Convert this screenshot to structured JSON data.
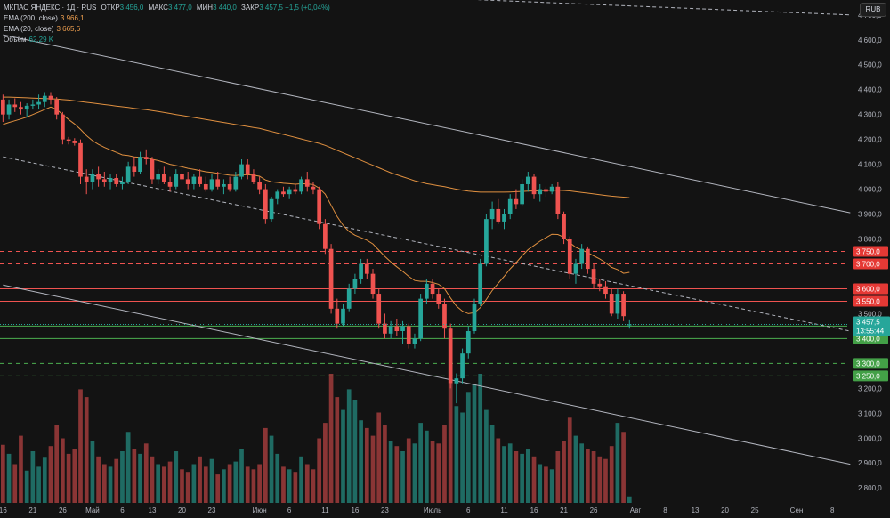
{
  "legend": {
    "symbol": "МКПАО ЯНДЕКС · 1Д · RUS",
    "open_label": "ОТКР",
    "open": "3 456,0",
    "high_label": "МАКС",
    "high": "3 477,0",
    "low_label": "МИН",
    "low": "3 440,0",
    "close_label": "ЗАКР",
    "close": "3 457,5",
    "change": "+1,5 (+0,04%)",
    "ema200_label": "EMA (200, close)",
    "ema200": "3 966,1",
    "ema20_label": "EMA (20, close)",
    "ema20": "3 665,6",
    "volume_label": "Объём",
    "volume": "62,29 K"
  },
  "currency": "RUB",
  "price_tag": {
    "value": "3 457,5",
    "countdown": "13:55:44",
    "color": "#26a69a"
  },
  "chart_data": {
    "type": "candlestick",
    "y_axis": {
      "min": 2740,
      "max": 4760,
      "ticks": [
        {
          "v": 4700,
          "label": "4 700,0"
        },
        {
          "v": 4600,
          "label": "4 600,0"
        },
        {
          "v": 4500,
          "label": "4 500,0"
        },
        {
          "v": 4400,
          "label": "4 400,0"
        },
        {
          "v": 4300,
          "label": "4 300,0"
        },
        {
          "v": 4200,
          "label": "4 200,0"
        },
        {
          "v": 4100,
          "label": "4 100,0"
        },
        {
          "v": 4000,
          "label": "4 000,0"
        },
        {
          "v": 3900,
          "label": "3 900,0"
        },
        {
          "v": 3800,
          "label": "3 800,0"
        },
        {
          "v": 3500,
          "label": "3 500,0"
        },
        {
          "v": 3200,
          "label": "3 200,0"
        },
        {
          "v": 3100,
          "label": "3 100,0"
        },
        {
          "v": 3000,
          "label": "3 000,0"
        },
        {
          "v": 2900,
          "label": "2 900,0"
        },
        {
          "v": 2800,
          "label": "2 800,0"
        }
      ]
    },
    "x_axis": {
      "ticks": [
        {
          "i": 0,
          "label": "16"
        },
        {
          "i": 5,
          "label": "21"
        },
        {
          "i": 10,
          "label": "26"
        },
        {
          "i": 15,
          "label": "Май"
        },
        {
          "i": 20,
          "label": "6"
        },
        {
          "i": 25,
          "label": "13"
        },
        {
          "i": 30,
          "label": "20"
        },
        {
          "i": 35,
          "label": "23"
        },
        {
          "i": 43,
          "label": "Июн"
        },
        {
          "i": 48,
          "label": "6"
        },
        {
          "i": 54,
          "label": "11"
        },
        {
          "i": 59,
          "label": "16"
        },
        {
          "i": 64,
          "label": "23"
        },
        {
          "i": 72,
          "label": "Июль"
        },
        {
          "i": 78,
          "label": "6"
        },
        {
          "i": 84,
          "label": "11"
        },
        {
          "i": 89,
          "label": "16"
        },
        {
          "i": 94,
          "label": "21"
        },
        {
          "i": 99,
          "label": "26"
        },
        {
          "i": 106,
          "label": "Авг"
        },
        {
          "i": 111,
          "label": "8"
        },
        {
          "i": 116,
          "label": "13"
        },
        {
          "i": 121,
          "label": "20"
        },
        {
          "i": 126,
          "label": "25"
        },
        {
          "i": 133,
          "label": "Сен"
        },
        {
          "i": 139,
          "label": "8"
        }
      ]
    },
    "levels": [
      {
        "v": 3750,
        "label": "3 750,0",
        "color": "#ef5350",
        "style": "dashed"
      },
      {
        "v": 3700,
        "label": "3 700,0",
        "color": "#ef5350",
        "style": "dashed"
      },
      {
        "v": 3600,
        "label": "3 600,0",
        "color": "#ef5350",
        "style": "solid"
      },
      {
        "v": 3550,
        "label": "3 550,0",
        "color": "#ef5350",
        "style": "solid"
      },
      {
        "v": 3450,
        "label": "3 450,0",
        "color": "#4caf50",
        "style": "solid"
      },
      {
        "v": 3400,
        "label": "3 400,0",
        "color": "#4caf50",
        "style": "solid"
      },
      {
        "v": 3300,
        "label": "3 300,0",
        "color": "#4caf50",
        "style": "dashed"
      },
      {
        "v": 3250,
        "label": "3 250,0",
        "color": "#4caf50",
        "style": "dashed"
      }
    ],
    "trendlines": [
      {
        "i1": 0,
        "v1": 4620,
        "i2": 142,
        "v2": 3905,
        "style": "solid",
        "color": "#b2b5be"
      },
      {
        "i1": 0,
        "v1": 4130,
        "i2": 142,
        "v2": 3430,
        "style": "dashed",
        "color": "#b2b5be"
      },
      {
        "i1": 0,
        "v1": 3615,
        "i2": 142,
        "v2": 2895,
        "style": "solid",
        "color": "#b2b5be"
      },
      {
        "i1": 40,
        "v1": 4800,
        "i2": 142,
        "v2": 4700,
        "style": "dashed",
        "color": "#b2b5be"
      }
    ],
    "ohlc": [
      [
        4360,
        4380,
        4270,
        4300
      ],
      [
        4300,
        4360,
        4280,
        4340
      ],
      [
        4340,
        4365,
        4310,
        4330
      ],
      [
        4330,
        4350,
        4300,
        4320
      ],
      [
        4320,
        4345,
        4290,
        4335
      ],
      [
        4335,
        4360,
        4320,
        4340
      ],
      [
        4340,
        4380,
        4320,
        4350
      ],
      [
        4350,
        4390,
        4330,
        4375
      ],
      [
        4375,
        4390,
        4340,
        4360
      ],
      [
        4360,
        4370,
        4280,
        4300
      ],
      [
        4300,
        4310,
        4180,
        4200
      ],
      [
        4200,
        4210,
        4180,
        4195
      ],
      [
        4195,
        4205,
        4175,
        4185
      ],
      [
        4185,
        4200,
        4020,
        4050
      ],
      [
        4050,
        4080,
        3980,
        4030
      ],
      [
        4030,
        4080,
        4000,
        4060
      ],
      [
        4060,
        4090,
        4010,
        4040
      ],
      [
        4040,
        4070,
        4010,
        4030
      ],
      [
        4030,
        4060,
        4000,
        4045
      ],
      [
        4045,
        4060,
        4010,
        4020
      ],
      [
        4020,
        4050,
        4000,
        4030
      ],
      [
        4030,
        4110,
        4020,
        4090
      ],
      [
        4090,
        4130,
        4050,
        4070
      ],
      [
        4070,
        4150,
        4060,
        4130
      ],
      [
        4130,
        4160,
        4100,
        4120
      ],
      [
        4120,
        4130,
        4020,
        4040
      ],
      [
        4040,
        4080,
        4020,
        4060
      ],
      [
        4060,
        4090,
        4020,
        4030
      ],
      [
        4030,
        4050,
        3990,
        4010
      ],
      [
        4010,
        4080,
        4000,
        4060
      ],
      [
        4060,
        4110,
        4030,
        4040
      ],
      [
        4040,
        4070,
        4000,
        4020
      ],
      [
        4020,
        4060,
        4000,
        4050
      ],
      [
        4050,
        4080,
        4010,
        4020
      ],
      [
        4020,
        4050,
        3990,
        4000
      ],
      [
        4000,
        4060,
        3990,
        4040
      ],
      [
        4040,
        4070,
        4000,
        4010
      ],
      [
        4010,
        4040,
        3980,
        4020
      ],
      [
        4020,
        4050,
        3990,
        4000
      ],
      [
        4000,
        4070,
        3990,
        4050
      ],
      [
        4050,
        4120,
        4040,
        4100
      ],
      [
        4100,
        4120,
        4040,
        4060
      ],
      [
        4060,
        4080,
        4020,
        4030
      ],
      [
        4030,
        4050,
        3980,
        4000
      ],
      [
        4000,
        4020,
        3860,
        3880
      ],
      [
        3880,
        3970,
        3870,
        3960
      ],
      [
        3960,
        4000,
        3940,
        3990
      ],
      [
        3990,
        4010,
        3970,
        3980
      ],
      [
        3980,
        4010,
        3960,
        4000
      ],
      [
        4000,
        4020,
        3980,
        3990
      ],
      [
        3990,
        4050,
        3980,
        4040
      ],
      [
        4040,
        4070,
        3990,
        4010
      ],
      [
        4010,
        4030,
        3980,
        4000
      ],
      [
        4000,
        4010,
        3840,
        3860
      ],
      [
        3860,
        3880,
        3740,
        3760
      ],
      [
        3760,
        3780,
        3500,
        3520
      ],
      [
        3520,
        3560,
        3440,
        3460
      ],
      [
        3460,
        3540,
        3450,
        3520
      ],
      [
        3520,
        3620,
        3510,
        3600
      ],
      [
        3600,
        3660,
        3580,
        3640
      ],
      [
        3640,
        3720,
        3620,
        3700
      ],
      [
        3700,
        3720,
        3640,
        3660
      ],
      [
        3660,
        3680,
        3560,
        3580
      ],
      [
        3580,
        3600,
        3440,
        3460
      ],
      [
        3460,
        3500,
        3400,
        3420
      ],
      [
        3420,
        3470,
        3400,
        3450
      ],
      [
        3450,
        3480,
        3410,
        3430
      ],
      [
        3430,
        3470,
        3380,
        3450
      ],
      [
        3450,
        3460,
        3360,
        3380
      ],
      [
        3380,
        3420,
        3360,
        3400
      ],
      [
        3400,
        3580,
        3390,
        3560
      ],
      [
        3560,
        3640,
        3540,
        3620
      ],
      [
        3620,
        3640,
        3560,
        3580
      ],
      [
        3580,
        3600,
        3520,
        3540
      ],
      [
        3540,
        3560,
        3400,
        3440
      ],
      [
        3440,
        3460,
        3200,
        3220
      ],
      [
        3220,
        3260,
        3140,
        3240
      ],
      [
        3240,
        3360,
        3220,
        3340
      ],
      [
        3340,
        3450,
        3320,
        3430
      ],
      [
        3430,
        3560,
        3420,
        3540
      ],
      [
        3540,
        3720,
        3530,
        3700
      ],
      [
        3700,
        3900,
        3690,
        3880
      ],
      [
        3880,
        3950,
        3840,
        3920
      ],
      [
        3920,
        3960,
        3860,
        3870
      ],
      [
        3870,
        3920,
        3840,
        3900
      ],
      [
        3900,
        3980,
        3880,
        3960
      ],
      [
        3960,
        4000,
        3920,
        3940
      ],
      [
        3940,
        4040,
        3930,
        4020
      ],
      [
        4020,
        4070,
        3990,
        4050
      ],
      [
        4050,
        4060,
        3960,
        3980
      ],
      [
        3980,
        4020,
        3950,
        4000
      ],
      [
        4000,
        4010,
        3970,
        3990
      ],
      [
        3990,
        4020,
        3980,
        4010
      ],
      [
        4010,
        4030,
        3880,
        3900
      ],
      [
        3900,
        3910,
        3780,
        3800
      ],
      [
        3800,
        3810,
        3640,
        3660
      ],
      [
        3660,
        3720,
        3620,
        3700
      ],
      [
        3700,
        3780,
        3680,
        3760
      ],
      [
        3760,
        3770,
        3660,
        3680
      ],
      [
        3680,
        3700,
        3600,
        3620
      ],
      [
        3620,
        3640,
        3590,
        3610
      ],
      [
        3610,
        3630,
        3560,
        3580
      ],
      [
        3580,
        3600,
        3490,
        3500
      ],
      [
        3500,
        3600,
        3480,
        3580
      ],
      [
        3580,
        3590,
        3470,
        3490
      ],
      [
        3456,
        3477,
        3440,
        3457
      ]
    ],
    "ema20": [
      4260,
      4268,
      4275,
      4282,
      4290,
      4300,
      4310,
      4320,
      4330,
      4320,
      4300,
      4280,
      4262,
      4240,
      4215,
      4195,
      4180,
      4168,
      4158,
      4148,
      4138,
      4135,
      4130,
      4128,
      4127,
      4120,
      4115,
      4108,
      4100,
      4095,
      4090,
      4084,
      4080,
      4075,
      4070,
      4067,
      4064,
      4060,
      4056,
      4055,
      4058,
      4058,
      4056,
      4052,
      4037,
      4030,
      4027,
      4024,
      4022,
      4020,
      4022,
      4021,
      4019,
      4004,
      3980,
      3935,
      3890,
      3855,
      3830,
      3815,
      3805,
      3795,
      3780,
      3755,
      3730,
      3708,
      3688,
      3670,
      3650,
      3633,
      3630,
      3630,
      3625,
      3618,
      3600,
      3563,
      3530,
      3510,
      3500,
      3504,
      3524,
      3557,
      3593,
      3622,
      3650,
      3680,
      3705,
      3732,
      3757,
      3774,
      3791,
      3805,
      3819,
      3818,
      3807,
      3785,
      3766,
      3756,
      3745,
      3732,
      3720,
      3705,
      3686,
      3677,
      3662,
      3666
    ],
    "ema200": [
      4370,
      4370,
      4369,
      4368,
      4367,
      4366,
      4365,
      4364,
      4363,
      4362,
      4360,
      4358,
      4355,
      4352,
      4349,
      4346,
      4343,
      4340,
      4337,
      4334,
      4331,
      4328,
      4325,
      4322,
      4319,
      4316,
      4312,
      4308,
      4304,
      4300,
      4296,
      4292,
      4288,
      4284,
      4280,
      4276,
      4272,
      4268,
      4264,
      4260,
      4256,
      4252,
      4248,
      4244,
      4238,
      4232,
      4226,
      4220,
      4214,
      4208,
      4202,
      4196,
      4190,
      4184,
      4176,
      4166,
      4156,
      4146,
      4136,
      4126,
      4116,
      4106,
      4096,
      4086,
      4076,
      4066,
      4058,
      4050,
      4042,
      4034,
      4028,
      4022,
      4018,
      4014,
      4010,
      4005,
      4000,
      3996,
      3992,
      3990,
      3988,
      3988,
      3988,
      3988,
      3988,
      3989,
      3990,
      3991,
      3992,
      3993,
      3994,
      3995,
      3996,
      3996,
      3995,
      3993,
      3990,
      3987,
      3984,
      3981,
      3978,
      3975,
      3972,
      3970,
      3968,
      3966
    ],
    "volume": [
      0.45,
      0.38,
      0.3,
      0.52,
      0.25,
      0.4,
      0.28,
      0.35,
      0.44,
      0.6,
      0.5,
      0.38,
      0.42,
      0.88,
      0.82,
      0.48,
      0.36,
      0.3,
      0.28,
      0.34,
      0.4,
      0.55,
      0.42,
      0.38,
      0.46,
      0.36,
      0.3,
      0.28,
      0.32,
      0.4,
      0.26,
      0.24,
      0.3,
      0.36,
      0.28,
      0.34,
      0.22,
      0.26,
      0.3,
      0.32,
      0.42,
      0.28,
      0.26,
      0.3,
      0.58,
      0.52,
      0.38,
      0.28,
      0.26,
      0.24,
      0.36,
      0.3,
      0.26,
      0.5,
      0.62,
      1.0,
      0.82,
      0.72,
      0.88,
      0.8,
      0.64,
      0.58,
      0.52,
      0.7,
      0.6,
      0.48,
      0.44,
      0.4,
      0.5,
      0.46,
      0.62,
      0.56,
      0.48,
      0.46,
      0.6,
      0.92,
      0.75,
      0.7,
      0.86,
      0.92,
      1.0,
      0.72,
      0.6,
      0.5,
      0.44,
      0.46,
      0.4,
      0.38,
      0.42,
      0.36,
      0.3,
      0.28,
      0.26,
      0.4,
      0.48,
      0.66,
      0.52,
      0.46,
      0.42,
      0.4,
      0.36,
      0.34,
      0.44,
      0.62,
      0.55,
      0.05
    ]
  }
}
